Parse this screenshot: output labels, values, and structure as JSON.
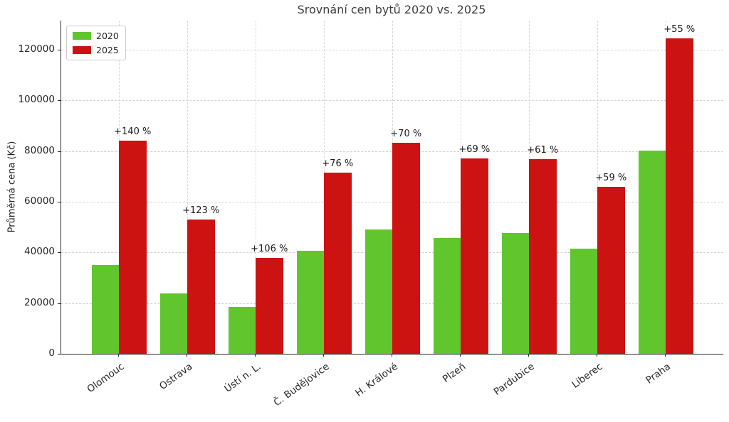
{
  "title": "Srovnání cen bytů 2020 vs. 2025",
  "chart_data": {
    "type": "bar",
    "title": "Srovnání cen bytů 2020 vs. 2025",
    "xlabel": "",
    "ylabel": "Průměrná cena (Kč)",
    "ylim": [
      0,
      131500
    ],
    "yticks": [
      0,
      20000,
      40000,
      60000,
      80000,
      100000,
      120000
    ],
    "grid": true,
    "grid_style": "dashed",
    "legend_position": "upper left",
    "categories": [
      "Olomouc",
      "Ostrava",
      "Ústí n. L.",
      "Č. Budějovice",
      "H. Králové",
      "Plzeň",
      "Pardubice",
      "Liberec",
      "Praha"
    ],
    "series": [
      {
        "name": "2020",
        "color": "#61c62e",
        "values": [
          35000,
          23800,
          18400,
          40700,
          49000,
          45600,
          47700,
          41500,
          80300
        ]
      },
      {
        "name": "2025",
        "color": "#cd1212",
        "values": [
          84000,
          53000,
          37900,
          71600,
          83300,
          77100,
          76800,
          66000,
          124500
        ]
      }
    ],
    "annotations": [
      "+140 %",
      "+123 %",
      "+106 %",
      "+76 %",
      "+70 %",
      "+69 %",
      "+61 %",
      "+59 %",
      "+55 %"
    ]
  },
  "legend": {
    "items": [
      {
        "label": "2020",
        "color": "#61c62e"
      },
      {
        "label": "2025",
        "color": "#cd1212"
      }
    ]
  },
  "colors": {
    "bar_2020": "#61c62e",
    "bar_2025": "#cd1212",
    "grid": "#d2d2d2",
    "axis": "#2b2b2b"
  }
}
